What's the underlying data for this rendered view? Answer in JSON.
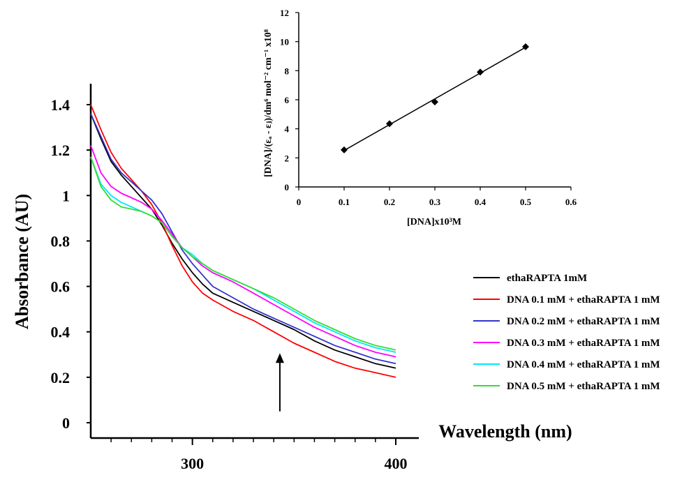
{
  "chart_data": [
    {
      "type": "line",
      "title": "",
      "xlabel": "Wavelength (nm)",
      "ylabel": "Absorbance (AU)",
      "xlim": [
        250,
        410
      ],
      "ylim": [
        0,
        1.5
      ],
      "x_ticks": [
        300,
        400
      ],
      "y_ticks": [
        0,
        0.2,
        0.4,
        0.6,
        0.8,
        1,
        1.2,
        1.4
      ],
      "y_tick_labels": [
        "0",
        "0.2",
        "0.4",
        "0.6",
        "0.8",
        "1",
        "1.2",
        "1.4"
      ],
      "x_tick_labels": [
        "300",
        "400"
      ],
      "grid": false,
      "legend_position": "right",
      "annotation": {
        "type": "arrow",
        "direction": "up",
        "x": 343,
        "y_from": 0.05,
        "y_to": 0.3
      },
      "series": [
        {
          "name": "ethaRAPTA 1mM",
          "color": "#000000",
          "x": [
            250,
            255,
            260,
            265,
            270,
            275,
            280,
            285,
            290,
            295,
            300,
            305,
            310,
            320,
            330,
            340,
            350,
            360,
            370,
            380,
            390,
            400
          ],
          "y": [
            1.36,
            1.25,
            1.15,
            1.09,
            1.04,
            0.99,
            0.94,
            0.87,
            0.79,
            0.72,
            0.66,
            0.61,
            0.57,
            0.53,
            0.49,
            0.45,
            0.41,
            0.36,
            0.32,
            0.29,
            0.26,
            0.24
          ]
        },
        {
          "name": "DNA 0.1 mM + ethaRAPTA 1 mM",
          "color": "#ff0000",
          "x": [
            250,
            255,
            260,
            265,
            270,
            275,
            280,
            285,
            290,
            295,
            300,
            305,
            310,
            320,
            330,
            340,
            350,
            360,
            370,
            380,
            390,
            400
          ],
          "y": [
            1.4,
            1.29,
            1.19,
            1.12,
            1.07,
            1.02,
            0.96,
            0.88,
            0.78,
            0.69,
            0.62,
            0.57,
            0.54,
            0.49,
            0.45,
            0.4,
            0.35,
            0.31,
            0.27,
            0.24,
            0.22,
            0.2
          ]
        },
        {
          "name": "DNA 0.2 mM + ethaRAPTA 1 mM",
          "color": "#3333cc",
          "x": [
            250,
            255,
            260,
            265,
            270,
            275,
            280,
            285,
            290,
            295,
            300,
            305,
            310,
            320,
            330,
            340,
            350,
            360,
            370,
            380,
            390,
            400
          ],
          "y": [
            1.36,
            1.26,
            1.16,
            1.1,
            1.06,
            1.02,
            0.98,
            0.92,
            0.84,
            0.76,
            0.7,
            0.65,
            0.6,
            0.55,
            0.5,
            0.46,
            0.42,
            0.38,
            0.34,
            0.31,
            0.28,
            0.26
          ]
        },
        {
          "name": "DNA 0.3 mM + ethaRAPTA 1 mM",
          "color": "#ff00ff",
          "x": [
            250,
            255,
            260,
            265,
            270,
            275,
            280,
            285,
            290,
            295,
            300,
            305,
            310,
            320,
            330,
            340,
            350,
            360,
            370,
            380,
            390,
            400
          ],
          "y": [
            1.22,
            1.1,
            1.04,
            1.01,
            0.99,
            0.97,
            0.94,
            0.89,
            0.83,
            0.77,
            0.73,
            0.69,
            0.66,
            0.62,
            0.57,
            0.52,
            0.47,
            0.42,
            0.38,
            0.34,
            0.31,
            0.29
          ]
        },
        {
          "name": "DNA 0.4 mM + ethaRAPTA 1 mM",
          "color": "#00e5ff",
          "x": [
            250,
            255,
            260,
            265,
            270,
            275,
            280,
            285,
            290,
            295,
            300,
            305,
            310,
            320,
            330,
            340,
            350,
            360,
            370,
            380,
            390,
            400
          ],
          "y": [
            1.17,
            1.05,
            1.0,
            0.97,
            0.95,
            0.93,
            0.91,
            0.88,
            0.82,
            0.77,
            0.74,
            0.7,
            0.67,
            0.63,
            0.59,
            0.54,
            0.49,
            0.44,
            0.4,
            0.36,
            0.33,
            0.31
          ]
        },
        {
          "name": "DNA 0.5 mM + ethaRAPTA 1 mM",
          "color": "#33dd33",
          "x": [
            250,
            255,
            260,
            265,
            270,
            275,
            280,
            285,
            290,
            295,
            300,
            305,
            310,
            320,
            330,
            340,
            350,
            360,
            370,
            380,
            390,
            400
          ],
          "y": [
            1.17,
            1.04,
            0.98,
            0.95,
            0.94,
            0.93,
            0.91,
            0.88,
            0.82,
            0.77,
            0.73,
            0.7,
            0.67,
            0.63,
            0.59,
            0.55,
            0.5,
            0.45,
            0.41,
            0.37,
            0.34,
            0.32
          ]
        }
      ]
    },
    {
      "type": "scatter",
      "title": "",
      "xlabel": "[DNA]x10³M",
      "ylabel": "[DNA]/(εₐ - εⱼ)/dm⁶ mol⁻² cm⁻¹ x10⁸",
      "xlim": [
        0,
        0.6
      ],
      "ylim": [
        0,
        12
      ],
      "x_ticks": [
        0,
        0.1,
        0.2,
        0.3,
        0.4,
        0.5,
        0.6
      ],
      "x_tick_labels": [
        "0",
        "0.1",
        "0.2",
        "0.3",
        "0.4",
        "0.5",
        "0.6"
      ],
      "y_ticks": [
        0,
        2,
        4,
        6,
        8,
        10,
        12
      ],
      "y_tick_labels": [
        "0",
        "2",
        "4",
        "6",
        "8",
        "10",
        "12"
      ],
      "grid": false,
      "marker": "diamond",
      "fit_line": true,
      "series": [
        {
          "x": [
            0.1,
            0.2,
            0.3,
            0.4,
            0.5
          ],
          "y": [
            2.55,
            4.35,
            5.85,
            7.9,
            9.65
          ]
        }
      ]
    }
  ],
  "colors": {
    "axis": "#000000",
    "marker": "#000000",
    "fit": "#000000",
    "arrow": "#000000"
  }
}
